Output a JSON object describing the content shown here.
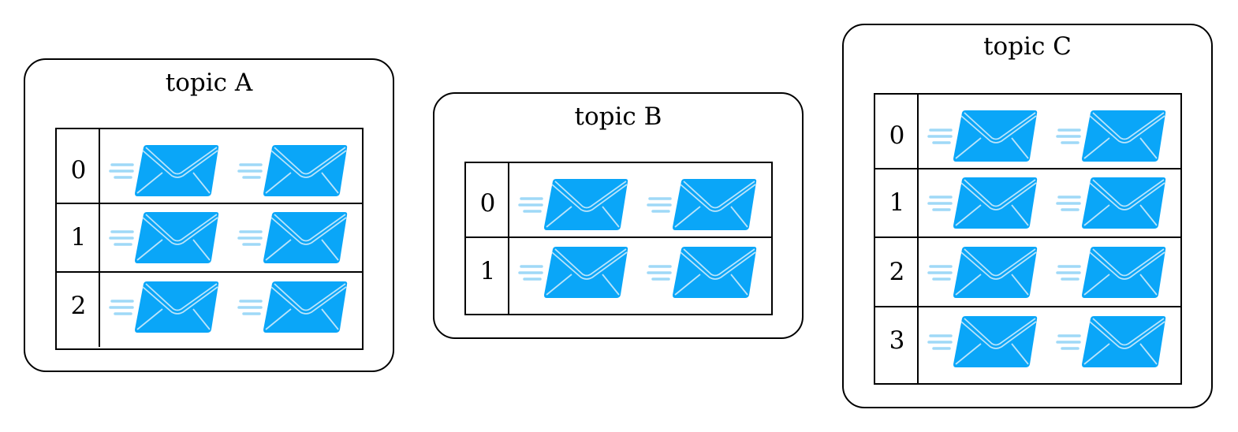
{
  "topics": [
    {
      "name": "topic A",
      "partitions": [
        {
          "label": "0",
          "messages": 2
        },
        {
          "label": "1",
          "messages": 2
        },
        {
          "label": "2",
          "messages": 2
        }
      ]
    },
    {
      "name": "topic B",
      "partitions": [
        {
          "label": "0",
          "messages": 2
        },
        {
          "label": "1",
          "messages": 2
        }
      ]
    },
    {
      "name": "topic C",
      "partitions": [
        {
          "label": "0",
          "messages": 2
        },
        {
          "label": "1",
          "messages": 2
        },
        {
          "label": "2",
          "messages": 2
        },
        {
          "label": "3",
          "messages": 2
        }
      ]
    }
  ],
  "icon": "envelope-icon",
  "colors": {
    "envelope": "#0aa6f8",
    "envelope_lines": "#b9e4fb",
    "speed_lines": "#9fd9f7",
    "border": "#000000"
  }
}
